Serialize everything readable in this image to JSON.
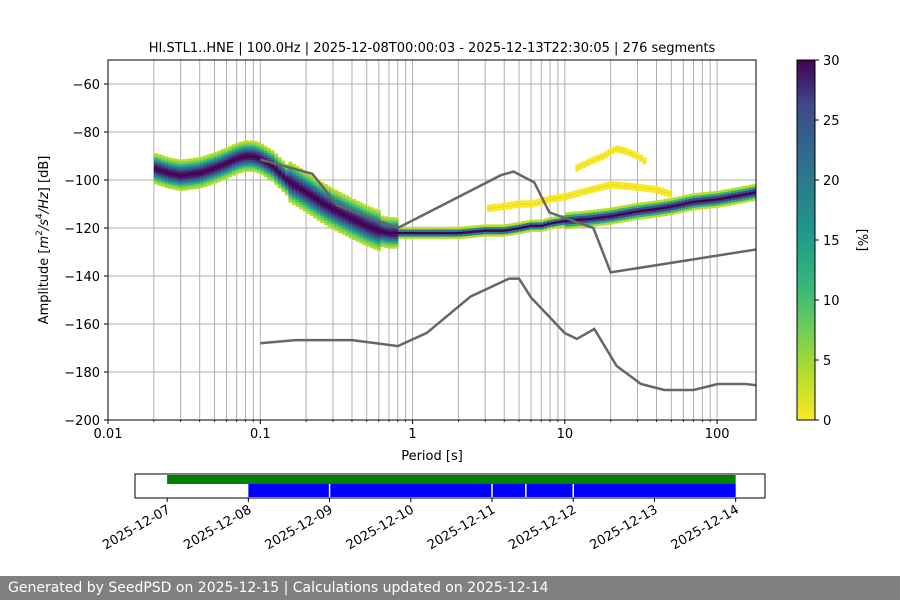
{
  "chart_data": [
    {
      "type": "heatmap",
      "title": "HI.STL1..HNE | 100.0Hz | 2025-12-08T00:00:03 - 2025-12-13T22:30:05 | 276 segments",
      "xlabel": "Period [s]",
      "ylabel_parts": [
        "Amplitude [",
        "m",
        "2",
        "/",
        "s",
        "4",
        "/",
        "Hz",
        "] [dB]"
      ],
      "x_scale": "log",
      "xlim": [
        0.01,
        180
      ],
      "ylim": [
        -200,
        -50
      ],
      "xticks": [
        0.01,
        0.1,
        1,
        10,
        100
      ],
      "xtick_labels": [
        "0.01",
        "0.1",
        "1",
        "10",
        "100"
      ],
      "yticks": [
        -200,
        -180,
        -160,
        -140,
        -120,
        -100,
        -80,
        -60
      ],
      "ytick_labels": [
        "−200",
        "−180",
        "−160",
        "−140",
        "−120",
        "−100",
        "−80",
        "−60"
      ],
      "grid": true,
      "colorbar": {
        "label": "[%]",
        "min": 0,
        "max": 30,
        "ticks": [
          0,
          5,
          10,
          15,
          20,
          25,
          30
        ],
        "tick_labels": [
          "0",
          "5",
          "10",
          "15",
          "20",
          "25",
          "30"
        ],
        "colormap": "viridis_r"
      },
      "mode_curve": {
        "x": [
          0.02,
          0.025,
          0.03,
          0.04,
          0.05,
          0.06,
          0.07,
          0.08,
          0.09,
          0.1,
          0.12,
          0.15,
          0.2,
          0.25,
          0.3,
          0.4,
          0.5,
          0.6,
          0.7,
          0.8,
          1,
          1.5,
          2,
          3,
          4,
          5,
          6,
          7,
          8,
          10,
          15,
          20,
          30,
          40,
          50,
          70,
          100,
          150,
          180
        ],
        "y": [
          -95,
          -97,
          -98,
          -97,
          -95,
          -93,
          -91,
          -90,
          -90,
          -91,
          -94,
          -100,
          -105,
          -109,
          -112,
          -116,
          -119,
          -121,
          -122,
          -122,
          -122,
          -122,
          -122,
          -121,
          -121,
          -120,
          -119,
          -119,
          -118,
          -117,
          -116,
          -115,
          -113,
          -112,
          -111,
          -109,
          -108,
          -106,
          -105
        ]
      },
      "secondary_bands": [
        {
          "x": [
            3,
            4,
            5,
            6,
            7,
            8,
            10,
            15,
            20,
            30,
            40,
            50
          ],
          "y": [
            -112,
            -111,
            -110,
            -110,
            -109,
            -108,
            -107,
            -104,
            -102,
            -103,
            -104,
            -106
          ]
        },
        {
          "x": [
            12,
            15,
            18,
            20,
            22,
            25,
            30,
            35
          ],
          "y": [
            -95,
            -92,
            -90,
            -88,
            -87,
            -88,
            -90,
            -93
          ]
        }
      ],
      "nhnm": {
        "x": [
          0.1,
          0.22,
          0.32,
          0.8,
          3.8,
          4.6,
          6.3,
          7.9,
          15.4,
          20,
          354.8
        ],
        "y": [
          -91.5,
          -97.4,
          -110.5,
          -120,
          -98,
          -96.5,
          -101,
          -113.5,
          -120,
          -138.5,
          -126
        ]
      },
      "nlnm": {
        "x": [
          0.1,
          0.17,
          0.4,
          0.8,
          1.24,
          2.4,
          4.3,
          5,
          6,
          10,
          12,
          15.6,
          21.9,
          31.6,
          45,
          70,
          101,
          154,
          328
        ],
        "y": [
          -168,
          -166.7,
          -166.7,
          -169.2,
          -163.7,
          -148.6,
          -141.1,
          -141.1,
          -149,
          -163.8,
          -166.2,
          -162.1,
          -177.5,
          -185,
          -187.5,
          -187.5,
          -185,
          -185,
          -187.5
        ]
      }
    },
    {
      "type": "timeline",
      "xticks": [
        "2025-12-07",
        "2025-12-08",
        "2025-12-09",
        "2025-12-10",
        "2025-12-11",
        "2025-12-12",
        "2025-12-13",
        "2025-12-14"
      ],
      "xlim": [
        "2025-12-06T14:30",
        "2025-12-14T08:40"
      ],
      "data_availability": [
        [
          "2025-12-07T00:00",
          "2025-12-14T00:00"
        ]
      ],
      "used_segments": [
        [
          "2025-12-08T00:00",
          "2025-12-14T00:00"
        ]
      ],
      "gaps": [
        "2025-12-09T00:00",
        "2025-12-11T00:00",
        "2025-12-11T10:00",
        "2025-12-12T00:00"
      ],
      "colors": {
        "availability": "#008000",
        "segments": "#0000ff"
      }
    }
  ],
  "footer": "Generated by SeedPSD on 2025-12-15 | Calculations updated on 2025-12-14"
}
